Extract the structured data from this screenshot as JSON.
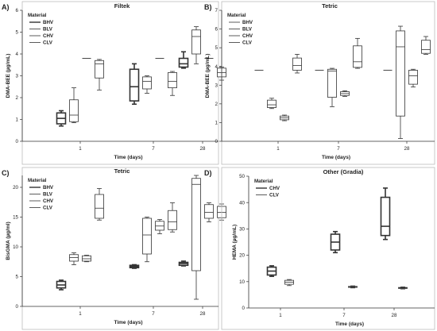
{
  "figure": {
    "background": "#ffffff",
    "line_color": "#333333"
  },
  "chart_data": [
    {
      "id": "A",
      "panel_label": "A)",
      "type": "boxplot",
      "title": "Filtek",
      "xlabel": "Time (days)",
      "ylabel": "DMA-BEE (µg/mL)",
      "categories": [
        "1",
        "7",
        "28"
      ],
      "ylim": [
        0,
        6
      ],
      "yticks": [
        0,
        1,
        2,
        3,
        4,
        5,
        6
      ],
      "legend": {
        "title": "Material",
        "position": "top-left"
      },
      "series": [
        {
          "name": "BHV",
          "style": "solid-thick",
          "boxes": [
            {
              "category": "1",
              "min": 0.7,
              "q1": 0.8,
              "median": 1.05,
              "q3": 1.3,
              "max": 1.4
            },
            {
              "category": "7",
              "min": 1.7,
              "q1": 1.85,
              "median": 2.5,
              "q3": 3.3,
              "max": 3.55
            },
            {
              "category": "28",
              "min": 3.35,
              "q1": 3.4,
              "median": 3.55,
              "q3": 3.8,
              "max": 4.1
            }
          ]
        },
        {
          "name": "BLV",
          "style": "thin",
          "boxes": [
            {
              "category": "1",
              "min": 0.85,
              "q1": 0.9,
              "median": 1.2,
              "q3": 1.9,
              "max": 2.45
            },
            {
              "category": "7",
              "min": 2.2,
              "q1": 2.4,
              "median": 2.75,
              "q3": 2.95,
              "max": 3.0
            },
            {
              "category": "28",
              "min": 3.55,
              "q1": 4.0,
              "median": 4.8,
              "q3": 5.1,
              "max": 5.25
            }
          ]
        },
        {
          "name": "CHV",
          "style": "flat",
          "boxes": [
            {
              "category": "1",
              "min": 3.8,
              "q1": 3.8,
              "median": 3.8,
              "q3": 3.8,
              "max": 3.8
            },
            {
              "category": "7",
              "min": 3.8,
              "q1": 3.8,
              "median": 3.8,
              "q3": 3.8,
              "max": 3.8
            },
            {
              "category": "28",
              "min": 3.8,
              "q1": 3.8,
              "median": 3.8,
              "q3": 3.8,
              "max": 3.8
            }
          ]
        },
        {
          "name": "CLV",
          "style": "thin",
          "boxes": [
            {
              "category": "1",
              "min": 2.35,
              "q1": 2.9,
              "median": 3.55,
              "q3": 3.7,
              "max": 3.75
            },
            {
              "category": "7",
              "min": 2.1,
              "q1": 2.45,
              "median": 2.75,
              "q3": 3.15,
              "max": 3.2
            },
            {
              "category": "28",
              "min": 2.8,
              "q1": 2.95,
              "median": 3.15,
              "q3": 3.35,
              "max": 3.4
            }
          ]
        }
      ]
    },
    {
      "id": "B",
      "panel_label": "B)",
      "type": "boxplot",
      "title": "Tetric",
      "xlabel": "Time (days)",
      "ylabel": "DMA-BEE (µg/mL)",
      "categories": [
        "1",
        "7",
        "28"
      ],
      "ylim": [
        0,
        7
      ],
      "yticks": [
        0,
        1,
        2,
        3,
        4,
        5,
        6,
        7
      ],
      "legend": {
        "title": "Material",
        "position": "top-left"
      },
      "series": [
        {
          "name": "BHV",
          "style": "flat",
          "boxes": [
            {
              "category": "1",
              "min": 3.8,
              "q1": 3.8,
              "median": 3.8,
              "q3": 3.8,
              "max": 3.8
            },
            {
              "category": "7",
              "min": 3.8,
              "q1": 3.8,
              "median": 3.8,
              "q3": 3.8,
              "max": 3.8
            },
            {
              "category": "28",
              "min": 3.8,
              "q1": 3.8,
              "median": 3.8,
              "q3": 3.8,
              "max": 3.8
            }
          ]
        },
        {
          "name": "BLV",
          "style": "thin",
          "boxes": [
            {
              "category": "1",
              "min": 1.75,
              "q1": 1.8,
              "median": 1.95,
              "q3": 2.2,
              "max": 2.3
            },
            {
              "category": "7",
              "min": 1.85,
              "q1": 2.35,
              "median": 3.75,
              "q3": 3.85,
              "max": 3.9
            },
            {
              "category": "28",
              "min": 0.15,
              "q1": 1.35,
              "median": 5.05,
              "q3": 5.9,
              "max": 6.15
            }
          ]
        },
        {
          "name": "CHV",
          "style": "thin",
          "boxes": [
            {
              "category": "1",
              "min": 1.1,
              "q1": 1.15,
              "median": 1.25,
              "q3": 1.35,
              "max": 1.4
            },
            {
              "category": "7",
              "min": 2.4,
              "q1": 2.45,
              "median": 2.55,
              "q3": 2.65,
              "max": 2.7
            },
            {
              "category": "28",
              "min": 2.9,
              "q1": 3.05,
              "median": 3.5,
              "q3": 3.8,
              "max": 3.85
            }
          ]
        },
        {
          "name": "CLV",
          "style": "thin",
          "boxes": [
            {
              "category": "1",
              "min": 3.65,
              "q1": 3.8,
              "median": 4.05,
              "q3": 4.45,
              "max": 4.65
            },
            {
              "category": "7",
              "min": 3.9,
              "q1": 3.95,
              "median": 4.25,
              "q3": 5.1,
              "max": 5.5
            },
            {
              "category": "28",
              "min": 4.65,
              "q1": 4.7,
              "median": 4.9,
              "q3": 5.4,
              "max": 5.6
            }
          ]
        }
      ]
    },
    {
      "id": "C",
      "panel_label": "C)",
      "type": "boxplot",
      "title": "Tetric",
      "xlabel": "Time (days)",
      "ylabel": "BisGMA (µg/ml)",
      "categories": [
        "1",
        "7",
        "28"
      ],
      "ylim": [
        0,
        22
      ],
      "yticks": [
        0,
        5,
        10,
        15,
        20
      ],
      "legend": {
        "title": "Material",
        "position": "top-left"
      },
      "series": [
        {
          "name": "BHV",
          "style": "solid-thick",
          "boxes": [
            {
              "category": "1",
              "min": 2.8,
              "q1": 3.1,
              "median": 3.6,
              "q3": 4.2,
              "max": 4.4
            },
            {
              "category": "7",
              "min": 6.4,
              "q1": 6.5,
              "median": 6.7,
              "q3": 6.9,
              "max": 7.0
            },
            {
              "category": "28",
              "min": 6.8,
              "q1": 6.9,
              "median": 7.2,
              "q3": 7.4,
              "max": 7.6
            }
          ]
        },
        {
          "name": "BLV",
          "style": "thin",
          "boxes": [
            {
              "category": "1",
              "min": 7.0,
              "q1": 7.6,
              "median": 8.2,
              "q3": 8.7,
              "max": 9.0
            },
            {
              "category": "7",
              "min": 7.5,
              "q1": 8.8,
              "median": 12.0,
              "q3": 14.8,
              "max": 15.0
            },
            {
              "category": "28",
              "min": 1.2,
              "q1": 6.0,
              "median": 20.5,
              "q3": 21.5,
              "max": 22.0
            }
          ]
        },
        {
          "name": "CHV",
          "style": "thin",
          "boxes": [
            {
              "category": "1",
              "min": 7.5,
              "q1": 7.6,
              "median": 8.0,
              "q3": 8.5,
              "max": 8.6
            },
            {
              "category": "7",
              "min": 12.2,
              "q1": 12.8,
              "median": 13.5,
              "q3": 14.3,
              "max": 14.6
            },
            {
              "category": "28",
              "min": 14.2,
              "q1": 14.8,
              "median": 15.8,
              "q3": 17.1,
              "max": 17.4
            }
          ]
        },
        {
          "name": "CLV",
          "style": "thin",
          "boxes": [
            {
              "category": "1",
              "min": 14.5,
              "q1": 14.8,
              "median": 16.5,
              "q3": 18.8,
              "max": 19.8
            },
            {
              "category": "7",
              "min": 12.5,
              "q1": 12.9,
              "median": 14.2,
              "q3": 16.1,
              "max": 17.4
            },
            {
              "category": "28",
              "min": 14.5,
              "q1": 14.9,
              "median": 15.8,
              "q3": 16.8,
              "max": 17.2
            }
          ]
        }
      ]
    },
    {
      "id": "D",
      "panel_label": "D)",
      "type": "boxplot",
      "title": "Other (Gradia)",
      "xlabel": "Time (days)",
      "ylabel": "HEMA (µg/mL)",
      "categories": [
        "1",
        "7",
        "28"
      ],
      "ylim": [
        0,
        50
      ],
      "yticks": [
        0,
        10,
        20,
        30,
        40,
        50
      ],
      "legend": {
        "title": "Material",
        "position": "top-left"
      },
      "series": [
        {
          "name": "CHV",
          "style": "solid-thick",
          "boxes": [
            {
              "category": "1",
              "min": 12.0,
              "q1": 12.5,
              "median": 14.0,
              "q3": 15.5,
              "max": 16.0
            },
            {
              "category": "7",
              "min": 21.0,
              "q1": 22.0,
              "median": 25.0,
              "q3": 28.0,
              "max": 29.0
            },
            {
              "category": "28",
              "min": 26.0,
              "q1": 27.5,
              "median": 31.0,
              "q3": 42.0,
              "max": 45.5
            }
          ]
        },
        {
          "name": "CLV",
          "style": "thin",
          "boxes": [
            {
              "category": "1",
              "min": 8.5,
              "q1": 9.0,
              "median": 9.8,
              "q3": 10.5,
              "max": 10.8
            },
            {
              "category": "7",
              "min": 7.6,
              "q1": 7.8,
              "median": 8.0,
              "q3": 8.2,
              "max": 8.4
            },
            {
              "category": "28",
              "min": 7.2,
              "q1": 7.4,
              "median": 7.6,
              "q3": 7.8,
              "max": 8.0
            }
          ]
        }
      ]
    }
  ]
}
